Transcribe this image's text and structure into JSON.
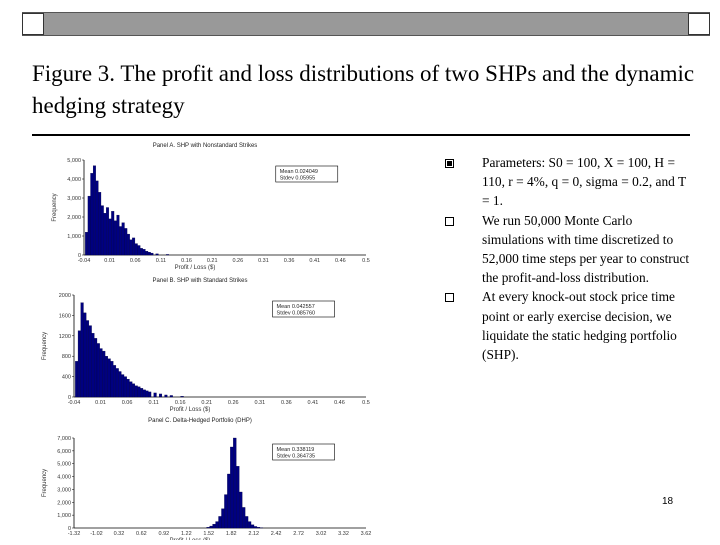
{
  "slide": {
    "title": "Figure 3. The profit and loss distributions of two SHPs and the dynamic hedging strategy",
    "page_number": "18",
    "bullets": [
      "Parameters: S0 = 100, X = 100, H = 110, r = 4%, q = 0, sigma = 0.2, and T = 1.",
      "We run 50,000 Monte Carlo simulations with time discretized to 52,000 time steps per year to construct the profit-and-loss distribution.",
      "At every knock-out stock price time point or early exercise decision, we liquidate the static hedging portfolio (SHP)."
    ]
  },
  "chart_data": [
    {
      "type": "bar",
      "title": "Panel A. SHP with Nonstandard Strikes",
      "xlabel": "Profit / Loss ($)",
      "ylabel": "Frequency",
      "legend": [
        "Mean 0.024049",
        "Stdev 0.05955"
      ],
      "legend_position": "top-right",
      "ylim": [
        0,
        5000
      ],
      "yticks": [
        "5,000",
        "4,000",
        "3,000",
        "2,000",
        "1,000",
        "0"
      ],
      "xticks": [
        "-0.04",
        "0.01",
        "0.06",
        "0.11",
        "0.16",
        "0.21",
        "0.26",
        "0.31",
        "0.36",
        "0.41",
        "0.46",
        "0.5"
      ],
      "x": [
        -0.035,
        -0.03,
        -0.025,
        -0.02,
        -0.015,
        -0.01,
        -0.005,
        0.0,
        0.005,
        0.01,
        0.015,
        0.02,
        0.025,
        0.03,
        0.035,
        0.04,
        0.045,
        0.05,
        0.055,
        0.06,
        0.065,
        0.07,
        0.075,
        0.08,
        0.085,
        0.09,
        0.1,
        0.12
      ],
      "values": [
        1200,
        3100,
        4300,
        4700,
        3900,
        3300,
        2600,
        2200,
        2500,
        1900,
        2300,
        1800,
        2100,
        1500,
        1700,
        1400,
        1100,
        800,
        900,
        600,
        500,
        350,
        300,
        200,
        150,
        100,
        60,
        30
      ]
    },
    {
      "type": "bar",
      "title": "Panel B. SHP with Standard Strikes",
      "xlabel": "Profit / Loss ($)",
      "ylabel": "Frequency",
      "legend": [
        "Mean 0.042557",
        "Stdev 0.085760"
      ],
      "legend_position": "top-right",
      "ylim": [
        0,
        2000
      ],
      "yticks": [
        "2000",
        "1600",
        "1200",
        "800",
        "400",
        "0"
      ],
      "xticks": [
        "-0.04",
        "0.01",
        "0.06",
        "0.11",
        "0.16",
        "0.21",
        "0.26",
        "0.31",
        "0.36",
        "0.41",
        "0.46",
        "0.5"
      ],
      "x": [
        -0.035,
        -0.03,
        -0.025,
        -0.02,
        -0.015,
        -0.01,
        -0.005,
        0.0,
        0.005,
        0.01,
        0.015,
        0.02,
        0.025,
        0.03,
        0.035,
        0.04,
        0.045,
        0.05,
        0.055,
        0.06,
        0.065,
        0.07,
        0.075,
        0.08,
        0.085,
        0.09,
        0.095,
        0.1,
        0.11,
        0.12,
        0.13,
        0.14,
        0.16
      ],
      "values": [
        700,
        1300,
        1850,
        1650,
        1500,
        1400,
        1250,
        1150,
        1050,
        950,
        900,
        800,
        750,
        700,
        620,
        560,
        500,
        440,
        400,
        350,
        300,
        260,
        220,
        200,
        170,
        140,
        120,
        100,
        80,
        60,
        40,
        30,
        15
      ]
    },
    {
      "type": "bar",
      "title": "Panel C. Delta-Hedged Portfolio (DHP)",
      "xlabel": "Profit / Loss ($)",
      "ylabel": "Frequency",
      "legend": [
        "Mean 0.338119",
        "Stdev 0.364735"
      ],
      "legend_position": "top-right",
      "ylim": [
        0,
        7000
      ],
      "yticks": [
        "7,000",
        "6,000",
        "5,000",
        "4,000",
        "3,000",
        "2,000",
        "1,000",
        "0"
      ],
      "xticks": [
        "-1.32",
        "-1.02",
        "0.32",
        "0.62",
        "0.92",
        "1.22",
        "1.52",
        "1.82",
        "2.12",
        "2.42",
        "2.72",
        "3.02",
        "3.32",
        "3.62"
      ],
      "x": [
        0.95,
        1.0,
        1.05,
        1.1,
        1.15,
        1.2,
        1.25,
        1.3,
        1.35,
        1.4,
        1.45,
        1.5,
        1.55,
        1.6,
        1.65,
        1.7,
        1.75,
        1.8,
        1.85
      ],
      "values": [
        60,
        150,
        300,
        500,
        900,
        1500,
        2600,
        4200,
        6300,
        7000,
        4800,
        2800,
        1600,
        900,
        500,
        250,
        120,
        60,
        20
      ]
    }
  ]
}
